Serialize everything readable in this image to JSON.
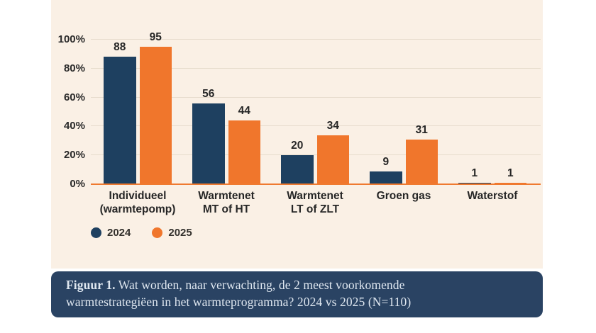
{
  "chart_data": {
    "type": "bar",
    "title": "",
    "categories": [
      "Individueel\n(warmtepomp)",
      "Warmtenet\nMT of HT",
      "Warmtenet\nLT of ZLT",
      "Groen gas",
      "Waterstof"
    ],
    "series": [
      {
        "name": "2024",
        "color": "#1e4060",
        "values": [
          88,
          56,
          20,
          9,
          1
        ]
      },
      {
        "name": "2025",
        "color": "#f0762c",
        "values": [
          95,
          44,
          34,
          31,
          1
        ]
      }
    ],
    "xlabel": "",
    "ylabel": "",
    "ylim": [
      0,
      100
    ],
    "yticks": [
      "0%",
      "20%",
      "40%",
      "60%",
      "80%",
      "100%"
    ],
    "grid": true,
    "value_labels": true,
    "legend_position": "bottom-left",
    "axis_line_color": "#ef7a30",
    "gridline_color": "#e7dccd",
    "panel_background": "#faf0e5"
  },
  "caption": {
    "bold": "Figuur 1.",
    "line1": " Wat worden, naar verwachting, de 2 meest voorkomende",
    "line2": "warmtestrategiëen in het warmteprogramma? 2024 vs 2025 (N=110)",
    "background": "#2a4363",
    "text_color": "#dfe7f0"
  }
}
